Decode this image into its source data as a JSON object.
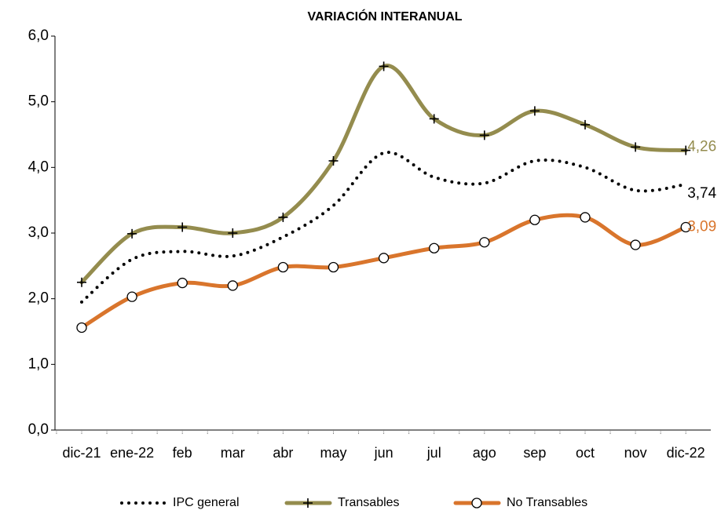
{
  "chart_data": {
    "type": "line",
    "title": "VARIACIÓN INTERANUAL",
    "categories": [
      "dic-21",
      "ene-22",
      "feb",
      "mar",
      "abr",
      "may",
      "jun",
      "jul",
      "ago",
      "sep",
      "oct",
      "nov",
      "dic-22"
    ],
    "series": [
      {
        "name": "IPC general",
        "color": "#000000",
        "style": "dotted",
        "marker": "none",
        "values": [
          1.95,
          2.6,
          2.72,
          2.65,
          2.94,
          3.42,
          4.22,
          3.85,
          3.76,
          4.1,
          4.0,
          3.65,
          3.74
        ],
        "value_labels": [
          null,
          null,
          null,
          null,
          null,
          null,
          null,
          null,
          null,
          null,
          null,
          null,
          "3,74"
        ]
      },
      {
        "name": "Transables",
        "color": "#948c4e",
        "style": "solid",
        "marker": "plus",
        "values": [
          2.25,
          2.99,
          3.09,
          3.0,
          3.24,
          4.1,
          5.54,
          4.74,
          4.49,
          4.86,
          4.65,
          4.31,
          4.26
        ],
        "value_labels": [
          null,
          null,
          null,
          null,
          null,
          null,
          null,
          null,
          null,
          null,
          null,
          null,
          "4,26"
        ]
      },
      {
        "name": "No Transables",
        "color": "#d9752c",
        "style": "solid",
        "marker": "circle",
        "values": [
          1.56,
          2.03,
          2.24,
          2.2,
          2.48,
          2.48,
          2.62,
          2.77,
          2.86,
          3.2,
          3.24,
          2.82,
          3.09
        ],
        "value_labels": [
          null,
          null,
          null,
          null,
          null,
          null,
          null,
          null,
          null,
          null,
          null,
          null,
          "3,09"
        ]
      }
    ],
    "ylim": [
      0,
      6
    ],
    "yticks": [
      {
        "value": 0,
        "label": "0,0"
      },
      {
        "value": 1,
        "label": "1,0"
      },
      {
        "value": 2,
        "label": "2,0"
      },
      {
        "value": 3,
        "label": "3,0"
      },
      {
        "value": 4,
        "label": "4,0"
      },
      {
        "value": 5,
        "label": "5,0"
      },
      {
        "value": 6,
        "label": "6,0"
      }
    ],
    "grid": false,
    "legend": "bottom"
  }
}
